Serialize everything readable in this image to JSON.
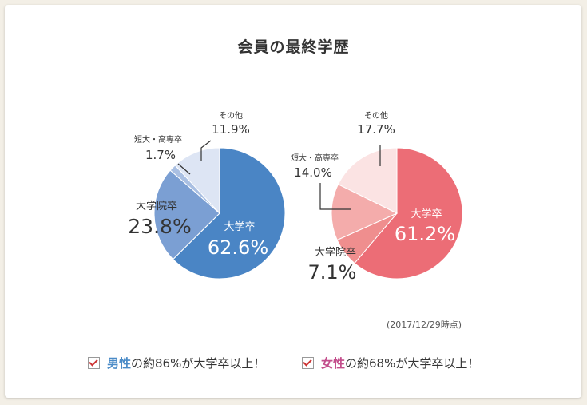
{
  "title": "会員の最終学歴",
  "note": "(2017/12/29時点)",
  "footer": {
    "male": {
      "word": "男性",
      "rest": "の約86%が大学卒以上！"
    },
    "female": {
      "word": "女性",
      "rest": "の約68%が大学卒以上！"
    }
  },
  "chart_data": [
    {
      "type": "pie",
      "name": "男性",
      "categories": [
        "大学卒",
        "大学院卒",
        "短大・高専卒",
        "その他"
      ],
      "values": [
        62.6,
        23.8,
        1.7,
        11.9
      ],
      "labels": [
        "62.6%",
        "23.8%",
        "1.7%",
        "11.9%"
      ],
      "colors": [
        "#4a85c5",
        "#7b9fd3",
        "#a9bfe2",
        "#dde5f4"
      ]
    },
    {
      "type": "pie",
      "name": "女性",
      "categories": [
        "大学卒",
        "大学院卒",
        "短大・高専卒",
        "その他"
      ],
      "values": [
        61.2,
        7.1,
        14.0,
        17.7
      ],
      "labels": [
        "61.2%",
        "7.1%",
        "14.0%",
        "17.7%"
      ],
      "colors": [
        "#ec6d76",
        "#ef8e8e",
        "#f4acab",
        "#fbe3e3"
      ]
    }
  ]
}
